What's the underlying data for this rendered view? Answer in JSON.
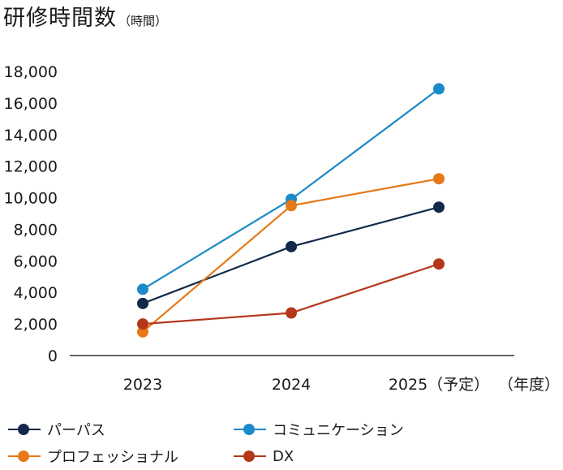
{
  "title": {
    "main": "研修時間数",
    "unit": "（時間）"
  },
  "x_unit_label": "（年度）",
  "chart_data": {
    "type": "line",
    "title": "研修時間数",
    "ylabel": "時間",
    "xlabel": "年度",
    "categories": [
      "2023",
      "2024",
      "2025（予定）"
    ],
    "ylim": [
      0,
      18000
    ],
    "yticks": [
      0,
      2000,
      4000,
      6000,
      8000,
      10000,
      12000,
      14000,
      16000,
      18000
    ],
    "ytick_labels": [
      "0",
      "2,000",
      "4,000",
      "6,000",
      "8,000",
      "10,000",
      "12,000",
      "14,000",
      "16,000",
      "18,000"
    ],
    "series": [
      {
        "name": "パーパス",
        "color": "#13294b",
        "values": [
          3300,
          6900,
          9400
        ]
      },
      {
        "name": "コミュニケーション",
        "color": "#1a8ac8",
        "values": [
          4200,
          9900,
          16900
        ]
      },
      {
        "name": "プロフェッショナル",
        "color": "#e77817",
        "values": [
          1500,
          9500,
          11200
        ]
      },
      {
        "name": "DX",
        "color": "#b5381c",
        "values": [
          2000,
          2700,
          5800
        ]
      }
    ],
    "legend_position": "bottom"
  }
}
